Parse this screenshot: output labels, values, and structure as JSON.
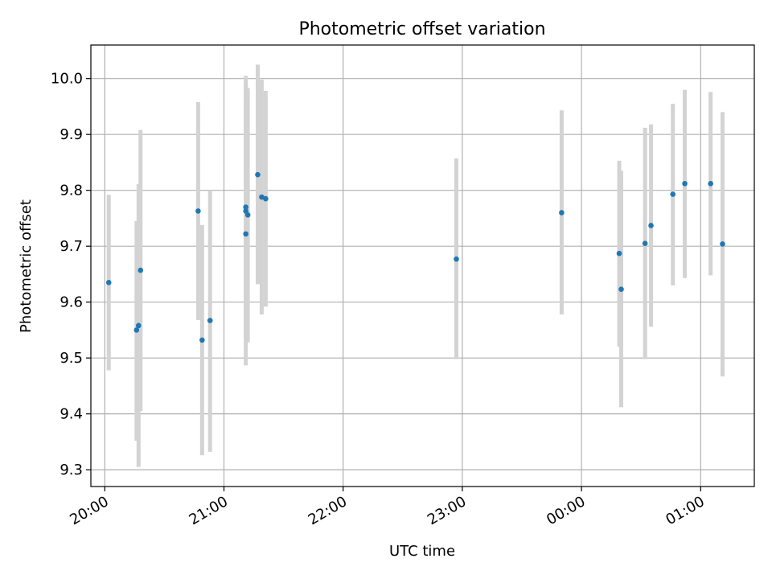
{
  "chart_data": {
    "type": "scatter",
    "title": "Photometric offset variation",
    "xlabel": "UTC time",
    "ylabel": "Photometric offset",
    "x_axis": {
      "kind": "time",
      "min": "19:53",
      "max": "01:27",
      "ticks": [
        "20:00",
        "21:00",
        "22:00",
        "23:00",
        "00:00",
        "01:00"
      ]
    },
    "y_axis": {
      "min": 9.27,
      "max": 10.06,
      "ticks": [
        "9.3",
        "9.4",
        "9.5",
        "9.6",
        "9.7",
        "9.8",
        "9.9",
        "10.0"
      ]
    },
    "grid": true,
    "colors": {
      "marker": "#1f77b4",
      "errorbar": "#d3d3d3",
      "grid": "#b0b0b0"
    },
    "series": [
      {
        "points": [
          {
            "x": "20:02",
            "y": 9.635,
            "lo": 9.478,
            "hi": 9.792
          },
          {
            "x": "20:16",
            "y": 9.55,
            "lo": 9.352,
            "hi": 9.745
          },
          {
            "x": "20:17",
            "y": 9.558,
            "lo": 9.305,
            "hi": 9.811
          },
          {
            "x": "20:18",
            "y": 9.657,
            "lo": 9.405,
            "hi": 9.908
          },
          {
            "x": "20:47",
            "y": 9.763,
            "lo": 9.568,
            "hi": 9.958
          },
          {
            "x": "20:49",
            "y": 9.532,
            "lo": 9.326,
            "hi": 9.738
          },
          {
            "x": "20:53",
            "y": 9.567,
            "lo": 9.332,
            "hi": 9.8
          },
          {
            "x": "21:11",
            "y": 9.722,
            "lo": 9.487,
            "hi": 9.958
          },
          {
            "x": "21:11",
            "y": 9.77,
            "lo": 9.535,
            "hi": 10.005
          },
          {
            "x": "21:11",
            "y": 9.763,
            "lo": 9.535,
            "hi": 9.99
          },
          {
            "x": "21:12",
            "y": 9.756,
            "lo": 9.528,
            "hi": 9.983
          },
          {
            "x": "21:17",
            "y": 9.828,
            "lo": 9.632,
            "hi": 10.025
          },
          {
            "x": "21:19",
            "y": 9.788,
            "lo": 9.578,
            "hi": 9.998
          },
          {
            "x": "21:21",
            "y": 9.785,
            "lo": 9.592,
            "hi": 9.978
          },
          {
            "x": "22:57",
            "y": 9.677,
            "lo": 9.498,
            "hi": 9.857
          },
          {
            "x": "23:50",
            "y": 9.76,
            "lo": 9.578,
            "hi": 9.943
          },
          {
            "x": "00:19",
            "y": 9.687,
            "lo": 9.52,
            "hi": 9.853
          },
          {
            "x": "00:20",
            "y": 9.623,
            "lo": 9.412,
            "hi": 9.835
          },
          {
            "x": "00:32",
            "y": 9.705,
            "lo": 9.498,
            "hi": 9.912
          },
          {
            "x": "00:35",
            "y": 9.737,
            "lo": 9.556,
            "hi": 9.918
          },
          {
            "x": "00:46",
            "y": 9.793,
            "lo": 9.63,
            "hi": 9.955
          },
          {
            "x": "00:52",
            "y": 9.812,
            "lo": 9.643,
            "hi": 9.98
          },
          {
            "x": "01:05",
            "y": 9.812,
            "lo": 9.648,
            "hi": 9.976
          },
          {
            "x": "01:11",
            "y": 9.704,
            "lo": 9.467,
            "hi": 9.94
          }
        ]
      }
    ]
  }
}
